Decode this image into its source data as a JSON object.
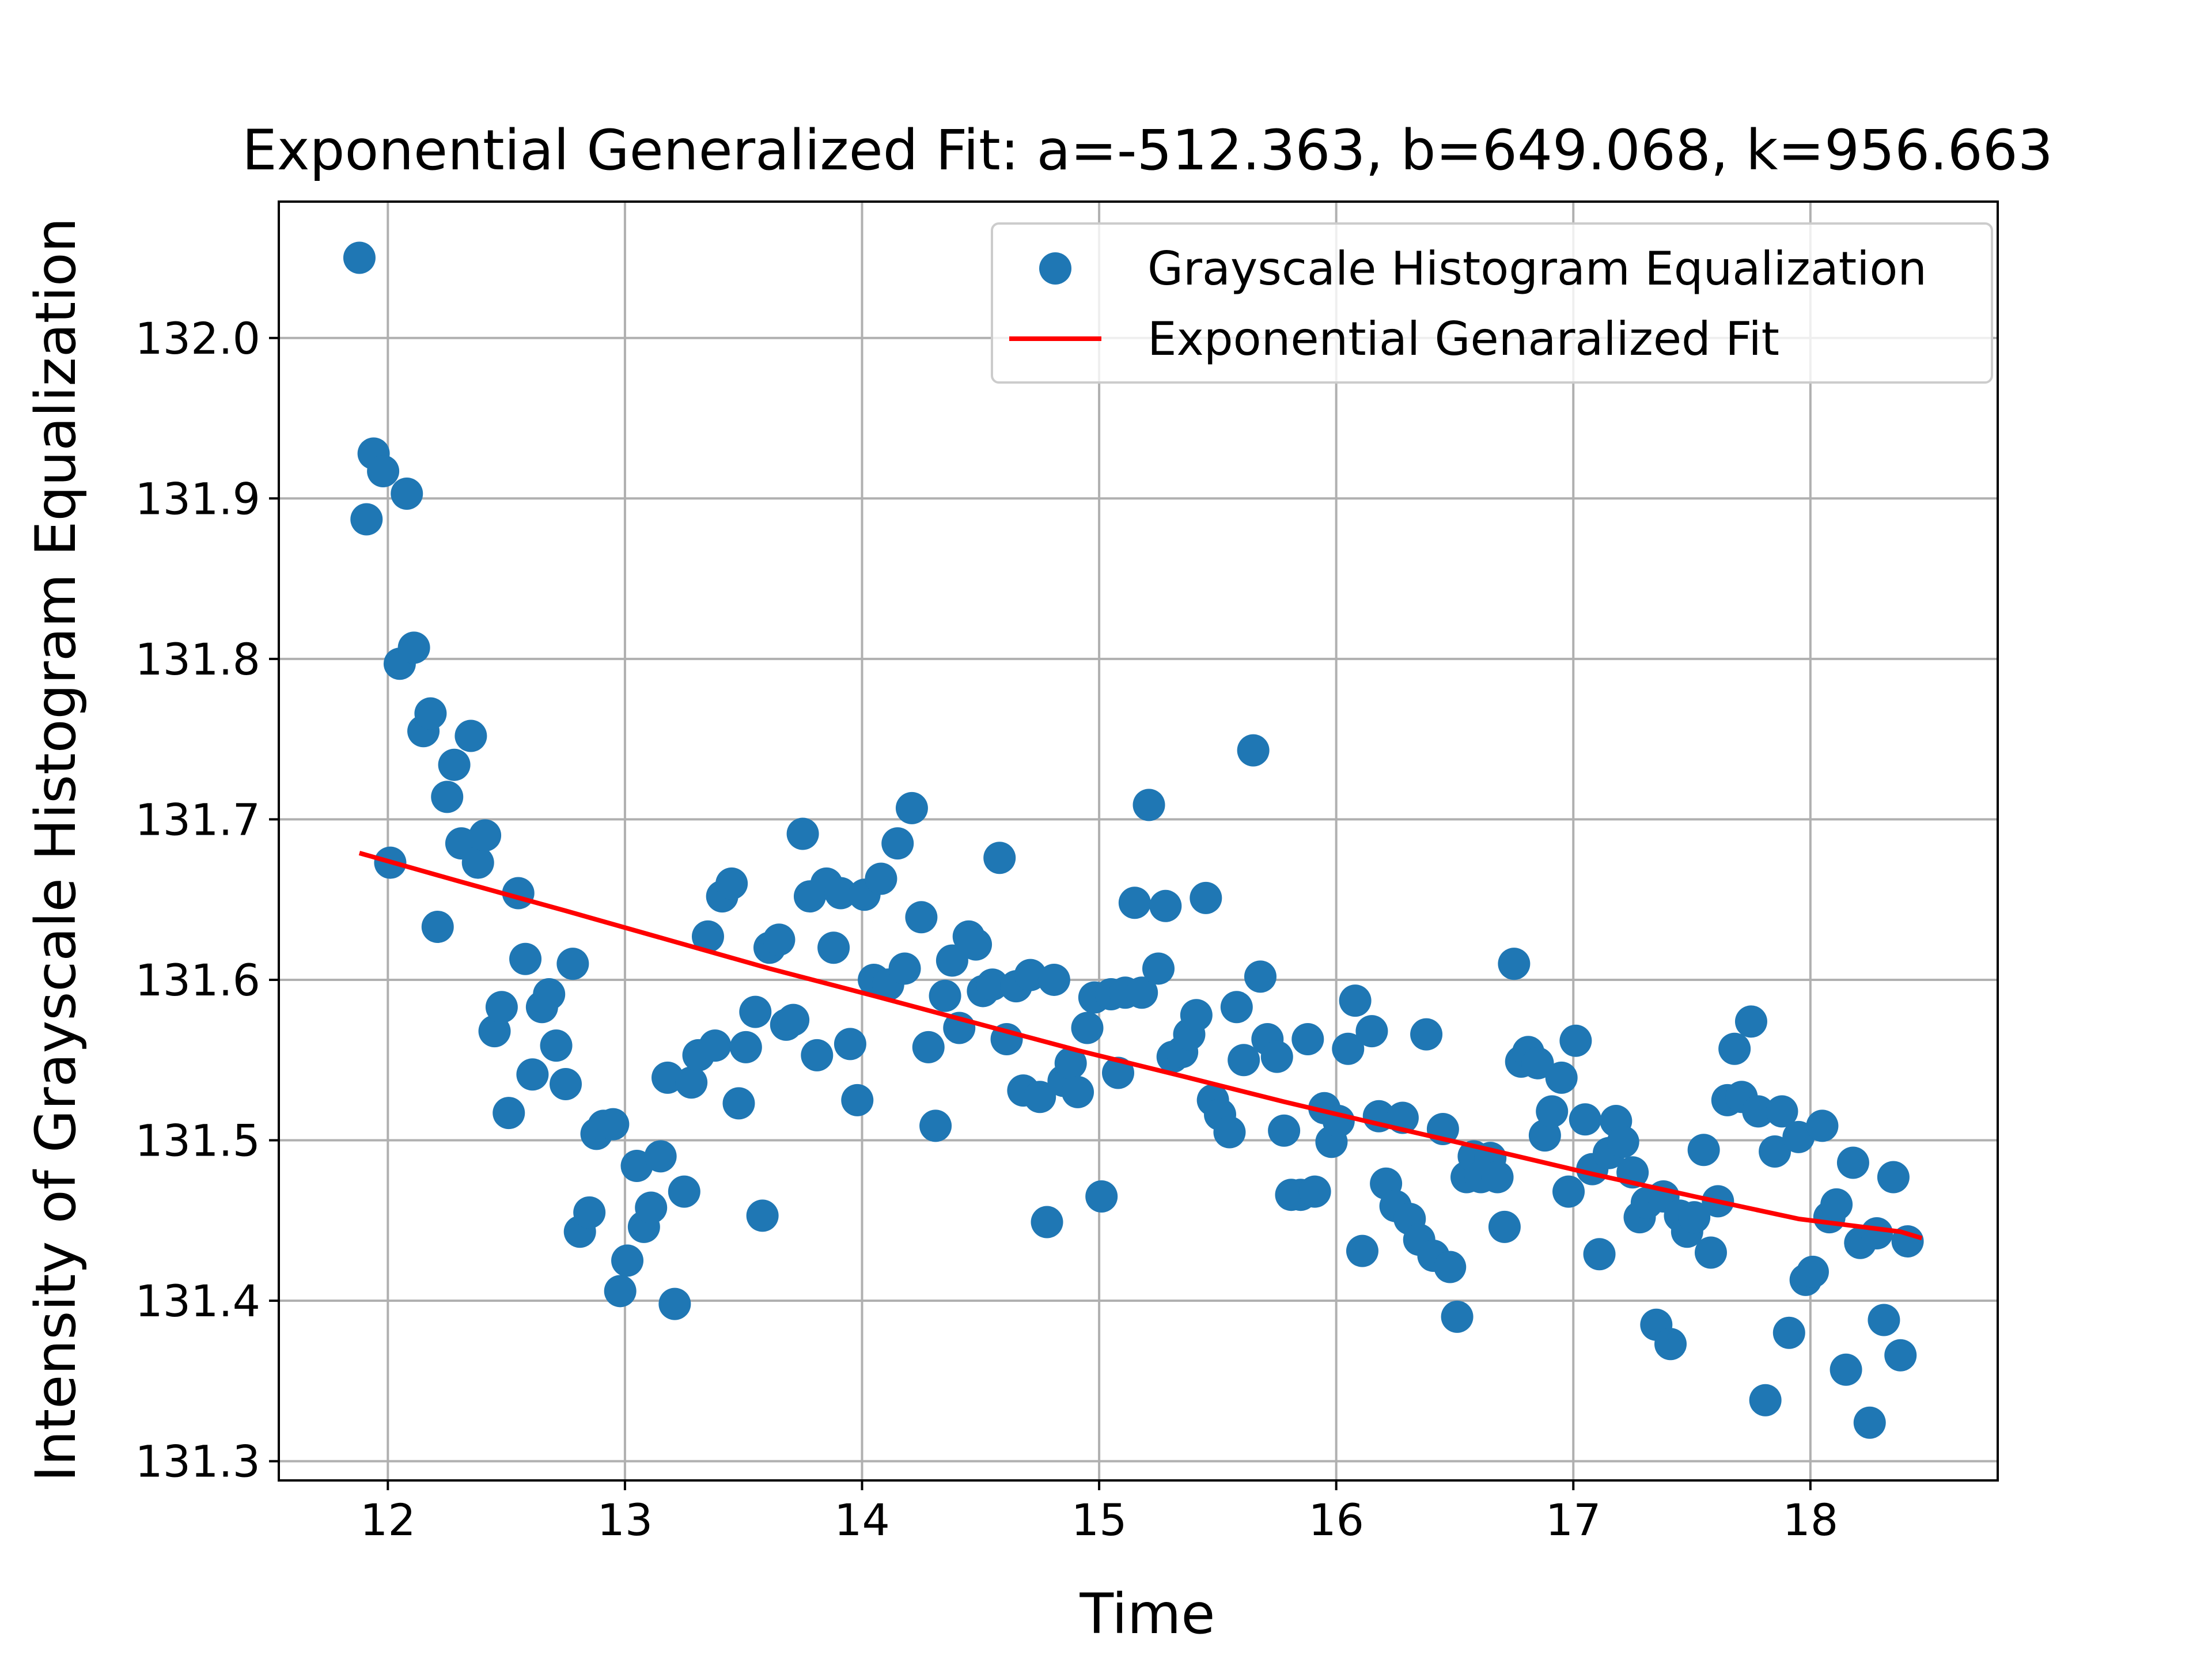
{
  "chart_data": {
    "type": "scatter",
    "title": "Exponential Generalized Fit: a=-512.363, b=649.068, k=956.663",
    "xlabel": "Time",
    "ylabel": "Intensity of Grayscale Histogram Equalization",
    "xlim": [
      11.54,
      18.79
    ],
    "ylim": [
      131.288,
      132.085
    ],
    "xticks": [
      12,
      13,
      14,
      15,
      16,
      17,
      18
    ],
    "yticks": [
      131.3,
      131.4,
      131.5,
      131.6,
      131.7,
      131.8,
      131.9,
      132.0
    ],
    "ytick_labels": [
      "131.3",
      "131.4",
      "131.5",
      "131.6",
      "131.7",
      "131.8",
      "131.9",
      "132.0"
    ],
    "grid": true,
    "legend_position": "top-right",
    "colors": {
      "scatter": "#1f77b4",
      "fit": "#ff0000"
    },
    "series": [
      {
        "name": "Grayscale Histogram Equalization",
        "kind": "scatter",
        "points": [
          [
            11.88,
            132.05
          ],
          [
            11.91,
            131.887
          ],
          [
            11.94,
            131.928
          ],
          [
            11.98,
            131.917
          ],
          [
            12.01,
            131.673
          ],
          [
            12.05,
            131.797
          ],
          [
            12.08,
            131.903
          ],
          [
            12.11,
            131.807
          ],
          [
            12.15,
            131.755
          ],
          [
            12.18,
            131.766
          ],
          [
            12.21,
            131.633
          ],
          [
            12.25,
            131.714
          ],
          [
            12.28,
            131.734
          ],
          [
            12.31,
            131.685
          ],
          [
            12.35,
            131.752
          ],
          [
            12.38,
            131.673
          ],
          [
            12.41,
            131.69
          ],
          [
            12.45,
            131.568
          ],
          [
            12.48,
            131.583
          ],
          [
            12.51,
            131.517
          ],
          [
            12.55,
            131.654
          ],
          [
            12.58,
            131.613
          ],
          [
            12.61,
            131.541
          ],
          [
            12.65,
            131.583
          ],
          [
            12.68,
            131.591
          ],
          [
            12.71,
            131.559
          ],
          [
            12.75,
            131.535
          ],
          [
            12.78,
            131.61
          ],
          [
            12.81,
            131.443
          ],
          [
            12.85,
            131.455
          ],
          [
            12.88,
            131.504
          ],
          [
            12.91,
            131.509
          ],
          [
            12.95,
            131.51
          ],
          [
            12.98,
            131.406
          ],
          [
            13.01,
            131.425
          ],
          [
            13.05,
            131.484
          ],
          [
            13.08,
            131.446
          ],
          [
            13.11,
            131.458
          ],
          [
            13.15,
            131.49
          ],
          [
            13.18,
            131.539
          ],
          [
            13.21,
            131.398
          ],
          [
            13.25,
            131.468
          ],
          [
            13.28,
            131.536
          ],
          [
            13.31,
            131.553
          ],
          [
            13.35,
            131.627
          ],
          [
            13.38,
            131.559
          ],
          [
            13.41,
            131.652
          ],
          [
            13.45,
            131.66
          ],
          [
            13.48,
            131.523
          ],
          [
            13.51,
            131.558
          ],
          [
            13.55,
            131.58
          ],
          [
            13.58,
            131.453
          ],
          [
            13.61,
            131.62
          ],
          [
            13.65,
            131.625
          ],
          [
            13.68,
            131.572
          ],
          [
            13.71,
            131.575
          ],
          [
            13.75,
            131.691
          ],
          [
            13.78,
            131.652
          ],
          [
            13.81,
            131.553
          ],
          [
            13.85,
            131.66
          ],
          [
            13.88,
            131.62
          ],
          [
            13.91,
            131.654
          ],
          [
            13.95,
            131.56
          ],
          [
            13.98,
            131.525
          ],
          [
            14.01,
            131.653
          ],
          [
            14.05,
            131.6
          ],
          [
            14.08,
            131.663
          ],
          [
            14.11,
            131.597
          ],
          [
            14.15,
            131.685
          ],
          [
            14.18,
            131.607
          ],
          [
            14.21,
            131.707
          ],
          [
            14.25,
            131.639
          ],
          [
            14.28,
            131.558
          ],
          [
            14.31,
            131.509
          ],
          [
            14.35,
            131.59
          ],
          [
            14.38,
            131.612
          ],
          [
            14.41,
            131.57
          ],
          [
            14.45,
            131.627
          ],
          [
            14.48,
            131.622
          ],
          [
            14.51,
            131.593
          ],
          [
            14.55,
            131.597
          ],
          [
            14.58,
            131.676
          ],
          [
            14.61,
            131.563
          ],
          [
            14.65,
            131.596
          ],
          [
            14.68,
            131.531
          ],
          [
            14.71,
            131.603
          ],
          [
            14.75,
            131.527
          ],
          [
            14.78,
            131.449
          ],
          [
            14.81,
            131.6
          ],
          [
            14.85,
            131.537
          ],
          [
            14.88,
            131.548
          ],
          [
            14.91,
            131.53
          ],
          [
            14.95,
            131.57
          ],
          [
            14.98,
            131.589
          ],
          [
            15.01,
            131.465
          ],
          [
            15.05,
            131.591
          ],
          [
            15.08,
            131.542
          ],
          [
            15.11,
            131.592
          ],
          [
            15.15,
            131.648
          ],
          [
            15.18,
            131.592
          ],
          [
            15.21,
            131.709
          ],
          [
            15.25,
            131.607
          ],
          [
            15.28,
            131.646
          ],
          [
            15.31,
            131.552
          ],
          [
            15.35,
            131.555
          ],
          [
            15.38,
            131.566
          ],
          [
            15.41,
            131.578
          ],
          [
            15.45,
            131.651
          ],
          [
            15.48,
            131.525
          ],
          [
            15.51,
            131.516
          ],
          [
            15.55,
            131.505
          ],
          [
            15.58,
            131.583
          ],
          [
            15.61,
            131.55
          ],
          [
            15.65,
            131.743
          ],
          [
            15.68,
            131.602
          ],
          [
            15.71,
            131.563
          ],
          [
            15.75,
            131.552
          ],
          [
            15.78,
            131.506
          ],
          [
            15.81,
            131.466
          ],
          [
            15.85,
            131.466
          ],
          [
            15.88,
            131.563
          ],
          [
            15.91,
            131.468
          ],
          [
            15.95,
            131.52
          ],
          [
            15.98,
            131.499
          ],
          [
            16.01,
            131.512
          ],
          [
            16.05,
            131.557
          ],
          [
            16.08,
            131.587
          ],
          [
            16.11,
            131.431
          ],
          [
            16.15,
            131.568
          ],
          [
            16.18,
            131.515
          ],
          [
            16.21,
            131.473
          ],
          [
            16.25,
            131.459
          ],
          [
            16.28,
            131.514
          ],
          [
            16.31,
            131.451
          ],
          [
            16.35,
            131.438
          ],
          [
            16.38,
            131.566
          ],
          [
            16.41,
            131.428
          ],
          [
            16.45,
            131.507
          ],
          [
            16.48,
            131.421
          ],
          [
            16.51,
            131.39
          ],
          [
            16.55,
            131.477
          ],
          [
            16.58,
            131.49
          ],
          [
            16.61,
            131.477
          ],
          [
            16.65,
            131.489
          ],
          [
            16.68,
            131.477
          ],
          [
            16.71,
            131.446
          ],
          [
            16.75,
            131.61
          ],
          [
            16.78,
            131.549
          ],
          [
            16.81,
            131.555
          ],
          [
            16.85,
            131.548
          ],
          [
            16.88,
            131.503
          ],
          [
            16.91,
            131.518
          ],
          [
            16.95,
            131.539
          ],
          [
            16.98,
            131.468
          ],
          [
            17.01,
            131.562
          ],
          [
            17.05,
            131.513
          ],
          [
            17.08,
            131.482
          ],
          [
            17.11,
            131.429
          ],
          [
            17.15,
            131.492
          ],
          [
            17.18,
            131.512
          ],
          [
            17.21,
            131.499
          ],
          [
            17.25,
            131.48
          ],
          [
            17.28,
            131.452
          ],
          [
            17.31,
            131.461
          ],
          [
            17.35,
            131.385
          ],
          [
            17.38,
            131.465
          ],
          [
            17.41,
            131.373
          ],
          [
            17.45,
            131.453
          ],
          [
            17.48,
            131.443
          ],
          [
            17.51,
            131.452
          ],
          [
            17.55,
            131.494
          ],
          [
            17.58,
            131.43
          ],
          [
            17.61,
            131.462
          ],
          [
            17.65,
            131.525
          ],
          [
            17.68,
            131.557
          ],
          [
            17.71,
            131.527
          ],
          [
            17.75,
            131.574
          ],
          [
            17.78,
            131.518
          ],
          [
            17.81,
            131.338
          ],
          [
            17.85,
            131.493
          ],
          [
            17.88,
            131.518
          ],
          [
            17.91,
            131.38
          ],
          [
            17.95,
            131.502
          ],
          [
            17.98,
            131.413
          ],
          [
            18.01,
            131.418
          ],
          [
            18.05,
            131.509
          ],
          [
            18.08,
            131.452
          ],
          [
            18.11,
            131.46
          ],
          [
            18.15,
            131.357
          ],
          [
            18.18,
            131.486
          ],
          [
            18.21,
            131.436
          ],
          [
            18.25,
            131.324
          ],
          [
            18.28,
            131.442
          ],
          [
            18.31,
            131.388
          ],
          [
            18.35,
            131.477
          ],
          [
            18.38,
            131.366
          ],
          [
            18.41,
            131.437
          ]
        ]
      },
      {
        "name": "Exponential Genaralized Fit",
        "kind": "line",
        "x": [
          11.88,
          12.31,
          12.75,
          13.18,
          13.61,
          14.05,
          14.48,
          14.91,
          15.35,
          15.78,
          16.21,
          16.65,
          17.08,
          17.51,
          17.95,
          18.38,
          18.47
        ],
        "y": [
          131.679,
          131.661,
          131.643,
          131.625,
          131.607,
          131.59,
          131.573,
          131.556,
          131.54,
          131.524,
          131.509,
          131.494,
          131.479,
          131.465,
          131.451,
          131.443,
          131.439
        ]
      }
    ]
  }
}
